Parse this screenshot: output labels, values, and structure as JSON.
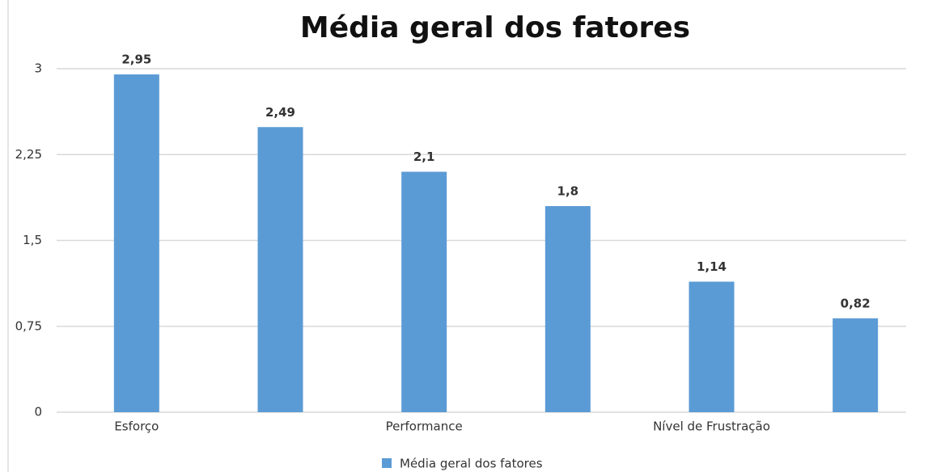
{
  "chart_data": {
    "type": "bar",
    "title": "Média geral dos fatores",
    "categories": [
      "Esforço",
      null,
      "Performance",
      null,
      "Nível de Frustração",
      null
    ],
    "series": [
      {
        "name": "Média geral dos fatores",
        "color": "#5b9bd5",
        "values": [
          2.95,
          2.49,
          2.1,
          1.8,
          1.14,
          0.82
        ],
        "value_labels": [
          "2,95",
          "2,49",
          "2,1",
          "1,8",
          "1,14",
          "0,82"
        ]
      }
    ],
    "ylim": [
      0,
      3
    ],
    "yticks": [
      0,
      {
        "value": 0.75,
        "label": "0,75"
      },
      {
        "value": 1.5,
        "label": "1,5"
      },
      {
        "value": 2.25,
        "label": "2,25"
      },
      3
    ],
    "grid": true,
    "legend": "bottom"
  }
}
